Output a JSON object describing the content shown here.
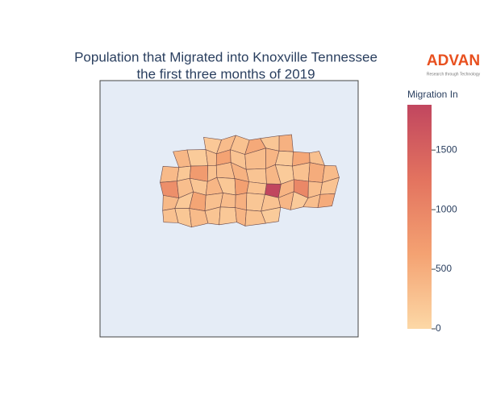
{
  "chart_data": {
    "type": "choropleth",
    "title": [
      "Population that Migrated into Knoxville Tennessee",
      "the first three months of 2019"
    ],
    "colorbar": {
      "title": "Migration In",
      "range": [
        0,
        1880
      ],
      "ticks": [
        0,
        500,
        1000,
        1500
      ],
      "colorscale": [
        "#fcd8a6",
        "#f4a272",
        "#e3735f",
        "#c1465f"
      ]
    },
    "values": [
      180,
      320,
      260,
      540,
      210,
      450,
      380,
      150,
      290,
      620,
      240,
      330,
      410,
      170,
      560,
      280,
      350,
      190,
      720,
      260,
      310,
      440,
      230,
      380,
      150,
      270,
      510,
      340,
      880,
      300,
      220,
      400,
      190,
      650,
      260,
      1880,
      420,
      980,
      300,
      240,
      360,
      170,
      590,
      280,
      330,
      460,
      210,
      250,
      390,
      160,
      300,
      520,
      270,
      200,
      340,
      230,
      180,
      410,
      260,
      150
    ]
  },
  "logo": {
    "name": "ADVAN",
    "tagline": "Research through Technology"
  }
}
